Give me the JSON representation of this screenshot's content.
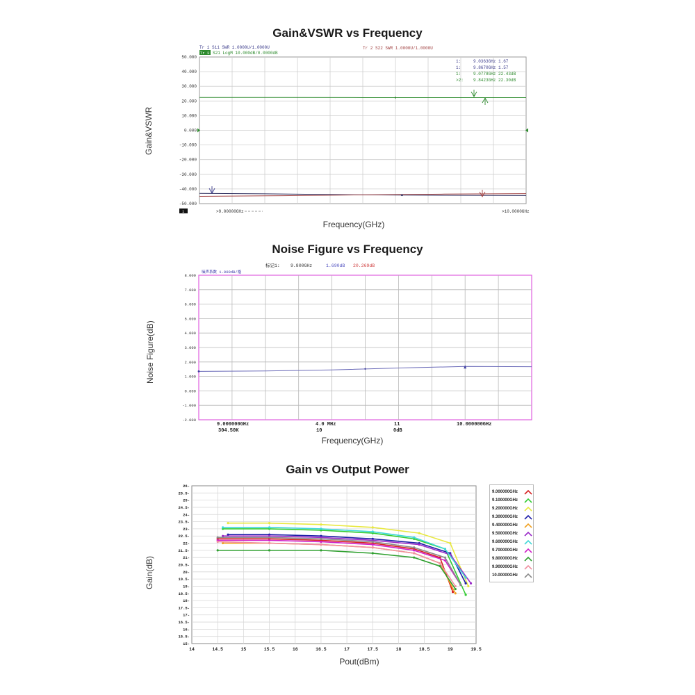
{
  "charts": {
    "gain_vswr": {
      "title": "Gain&VSWR vs Frequency",
      "ylabel": "Gain&VSWR",
      "xlabel": "Frequency(GHz)",
      "header_left_1": "Tr 1  S11 SWR 1.0000U/1.0000U",
      "header_left_2_tag": "Tr 3",
      "header_left_2": "S21 LogM 10.000dB/0.0000dB",
      "header_right": "Tr 2  S22 SWR 1.0000U/1.0000U",
      "yticks": [
        "50.000",
        "40.000",
        "30.000",
        "20.000",
        "10.000",
        "0.000",
        "-10.000",
        "-20.000",
        "-30.000",
        "-40.000",
        "-50.000"
      ],
      "x_start": ">9.00000GHz",
      "x_end": ">10.0000GHz",
      "footer_tag": "1",
      "markers": [
        {
          "id": "1:",
          "text": "9.0363GHz 1.67",
          "color": "#3a3a8a"
        },
        {
          "id": "1:",
          "text": "9.8670GHz 1.57",
          "color": "#3a3a8a"
        },
        {
          "id": "1:",
          "text": "9.0778GHz 22.43dB",
          "color": "#2e8b2e"
        },
        {
          "id": ">2:",
          "text": "9.8423GHz 22.30dB",
          "color": "#2e8b2e"
        }
      ]
    },
    "noise_figure": {
      "title": "Noise Figure vs Frequency",
      "ylabel": "Noise Figure(dB)",
      "xlabel": "Frequency(GHz)",
      "tag": "噪声系数  1.000dB/格",
      "marker_label": "标记1:",
      "marker_freq": "9.800GHz",
      "marker_nf": "1.690dB",
      "marker_gain": "20.269dB",
      "yticks": [
        "8.000",
        "7.000",
        "6.000",
        "5.000",
        "4.000",
        "3.000",
        "2.000",
        "1.000",
        "0.000",
        "-1.000",
        "-2.000"
      ],
      "footer_start": "9.000000GHz",
      "footer_start_sub": "304.50K",
      "footer_mid1": "4.0  MHz",
      "footer_mid1_sub": "10",
      "footer_mid2": "11",
      "footer_mid2_sub": "0dB",
      "footer_end": "10.000000GHz"
    },
    "gain_pout": {
      "title": "Gain vs Output Power",
      "ylabel": "Gain(dB)",
      "xlabel": "Pout(dBm)",
      "xticks": [
        "14",
        "14.5",
        "15",
        "15.5",
        "16",
        "16.5",
        "17",
        "17.5",
        "18",
        "18.5",
        "19",
        "19.5"
      ],
      "yticks": [
        "26",
        "25.5",
        "25",
        "24.5",
        "24",
        "23.5",
        "23",
        "22.5",
        "22",
        "21.5",
        "21",
        "20.5",
        "20",
        "19.5",
        "19",
        "18.5",
        "18",
        "17.5",
        "17",
        "16.5",
        "16",
        "15.5",
        "15"
      ]
    }
  },
  "chart_data": [
    {
      "type": "line",
      "title": "Gain&VSWR vs Frequency",
      "xlabel": "Frequency(GHz)",
      "ylabel": "Gain&VSWR",
      "xlim": [
        9.0,
        10.0
      ],
      "ylim": [
        -50,
        50
      ],
      "series": [
        {
          "name": "S21 LogM",
          "color": "#2e8b2e",
          "x": [
            9.0,
            9.25,
            9.5,
            9.75,
            10.0
          ],
          "y": [
            22.4,
            22.4,
            22.3,
            22.3,
            22.3
          ]
        },
        {
          "name": "S11 SWR",
          "color": "#2b2b5c",
          "x": [
            9.0,
            9.25,
            9.5,
            9.75,
            10.0
          ],
          "y": [
            -43.0,
            -43.4,
            -44.0,
            -44.3,
            -44.5
          ]
        },
        {
          "name": "S22 SWR",
          "color": "#a04040",
          "x": [
            9.0,
            9.25,
            9.5,
            9.75,
            10.0
          ],
          "y": [
            -45.0,
            -44.6,
            -44.0,
            -43.5,
            -43.2
          ]
        }
      ]
    },
    {
      "type": "line",
      "title": "Noise Figure vs Frequency",
      "xlabel": "Frequency(GHz)",
      "ylabel": "Noise Figure(dB)",
      "xlim": [
        9.0,
        10.0
      ],
      "ylim": [
        -2,
        8
      ],
      "series": [
        {
          "name": "Noise Figure",
          "color": "#6a6ab8",
          "x": [
            9.0,
            9.2,
            9.4,
            9.6,
            9.8,
            10.0
          ],
          "y": [
            1.35,
            1.38,
            1.45,
            1.58,
            1.69,
            1.67
          ]
        }
      ]
    },
    {
      "type": "line",
      "title": "Gain vs Output Power",
      "xlabel": "Pout(dBm)",
      "ylabel": "Gain(dB)",
      "xlim": [
        14,
        19.5
      ],
      "ylim": [
        15,
        26
      ],
      "series": [
        {
          "name": "9.000000GHz",
          "color": "#d62020",
          "x": [
            14.5,
            15.5,
            16.5,
            17.5,
            18.3,
            18.8,
            19.05
          ],
          "y": [
            22.3,
            22.3,
            22.2,
            22.0,
            21.6,
            21.0,
            18.6
          ]
        },
        {
          "name": "9.100000GHz",
          "color": "#33cc33",
          "x": [
            14.6,
            15.5,
            16.5,
            17.5,
            18.3,
            18.9,
            19.3
          ],
          "y": [
            23.0,
            23.0,
            22.9,
            22.7,
            22.3,
            21.6,
            18.4
          ]
        },
        {
          "name": "9.200000GHz",
          "color": "#e8e840",
          "x": [
            14.7,
            15.5,
            16.5,
            17.5,
            18.4,
            19.0,
            19.35
          ],
          "y": [
            23.4,
            23.4,
            23.3,
            23.1,
            22.7,
            22.0,
            19.0
          ]
        },
        {
          "name": "9.300000GHz",
          "color": "#1f1fa8",
          "x": [
            14.7,
            15.5,
            16.5,
            17.5,
            18.4,
            19.0,
            19.3
          ],
          "y": [
            22.6,
            22.6,
            22.5,
            22.3,
            22.0,
            21.3,
            19.2
          ]
        },
        {
          "name": "9.400000GHz",
          "color": "#f0a020",
          "x": [
            14.6,
            15.5,
            16.5,
            17.5,
            18.3,
            18.8,
            19.1
          ],
          "y": [
            22.0,
            22.0,
            21.9,
            21.7,
            21.3,
            20.6,
            18.5
          ]
        },
        {
          "name": "9.500000GHz",
          "color": "#9a2ac8",
          "x": [
            14.6,
            15.5,
            16.5,
            17.5,
            18.4,
            19.0,
            19.4
          ],
          "y": [
            22.5,
            22.5,
            22.4,
            22.2,
            21.9,
            21.2,
            19.2
          ]
        },
        {
          "name": "9.600000GHz",
          "color": "#40d8d8",
          "x": [
            14.6,
            15.5,
            16.5,
            17.5,
            18.3,
            18.9,
            19.3
          ],
          "y": [
            23.1,
            23.1,
            23.0,
            22.8,
            22.4,
            21.6,
            19.6
          ]
        },
        {
          "name": "9.700000GHz",
          "color": "#d020c8",
          "x": [
            14.5,
            15.5,
            16.5,
            17.5,
            18.3,
            18.9,
            19.2
          ],
          "y": [
            22.2,
            22.2,
            22.1,
            21.9,
            21.5,
            20.8,
            19.1
          ]
        },
        {
          "name": "9.800000GHz",
          "color": "#30a030",
          "x": [
            14.5,
            15.5,
            16.5,
            17.5,
            18.3,
            18.8,
            19.1
          ],
          "y": [
            21.5,
            21.5,
            21.5,
            21.3,
            21.0,
            20.4,
            18.8
          ]
        },
        {
          "name": "9.900000GHz",
          "color": "#f090a0",
          "x": [
            14.5,
            15.5,
            16.5,
            17.5,
            18.3,
            18.8,
            19.1
          ],
          "y": [
            22.1,
            22.0,
            21.9,
            21.7,
            21.3,
            20.6,
            19.0
          ]
        },
        {
          "name": "10.00000GHz",
          "color": "#8a8a8a",
          "x": [
            14.5,
            15.5,
            16.5,
            17.5,
            18.3,
            18.9,
            19.2
          ],
          "y": [
            22.4,
            22.4,
            22.3,
            22.1,
            21.7,
            21.0,
            19.1
          ]
        }
      ]
    }
  ]
}
